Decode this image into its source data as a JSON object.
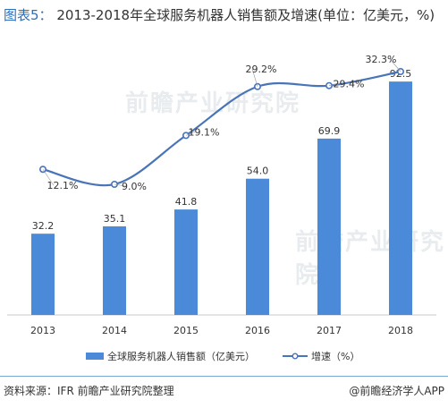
{
  "title_label": "图表5：",
  "title_text": "2013-2018年全球服务机器人销售额及增速(单位：亿美元，%)",
  "watermark_text": "前瞻产业研究院",
  "source": "资料来源：IFR 前瞻产业研究院整理",
  "app_logo": "@前瞻经济学人APP",
  "colors": {
    "bar": "#4a8ad8",
    "line": "#4a74b8",
    "title_accent": "#2a6fbd"
  },
  "chart_data": {
    "type": "bar+line",
    "categories": [
      "2013",
      "2014",
      "2015",
      "2016",
      "2017",
      "2018"
    ],
    "series": [
      {
        "name": "全球服务机器人销售额（亿美元）",
        "type": "bar",
        "values": [
          32.2,
          35.1,
          41.8,
          54.0,
          69.9,
          92.5
        ],
        "labels": [
          "32.2",
          "35.1",
          "41.8",
          "54.0",
          "69.9",
          "92.5"
        ]
      },
      {
        "name": "增速（%）",
        "type": "line",
        "values": [
          12.1,
          9.0,
          19.1,
          29.2,
          29.4,
          32.3
        ],
        "labels": [
          "12.1%",
          "9.0%",
          "19.1%",
          "29.2%",
          "29.4%",
          "32.3%"
        ]
      }
    ],
    "bar_ylim": [
      0,
      100
    ],
    "line_ylim": [
      -18,
      36
    ],
    "legend_position": "bottom",
    "grid": false
  }
}
